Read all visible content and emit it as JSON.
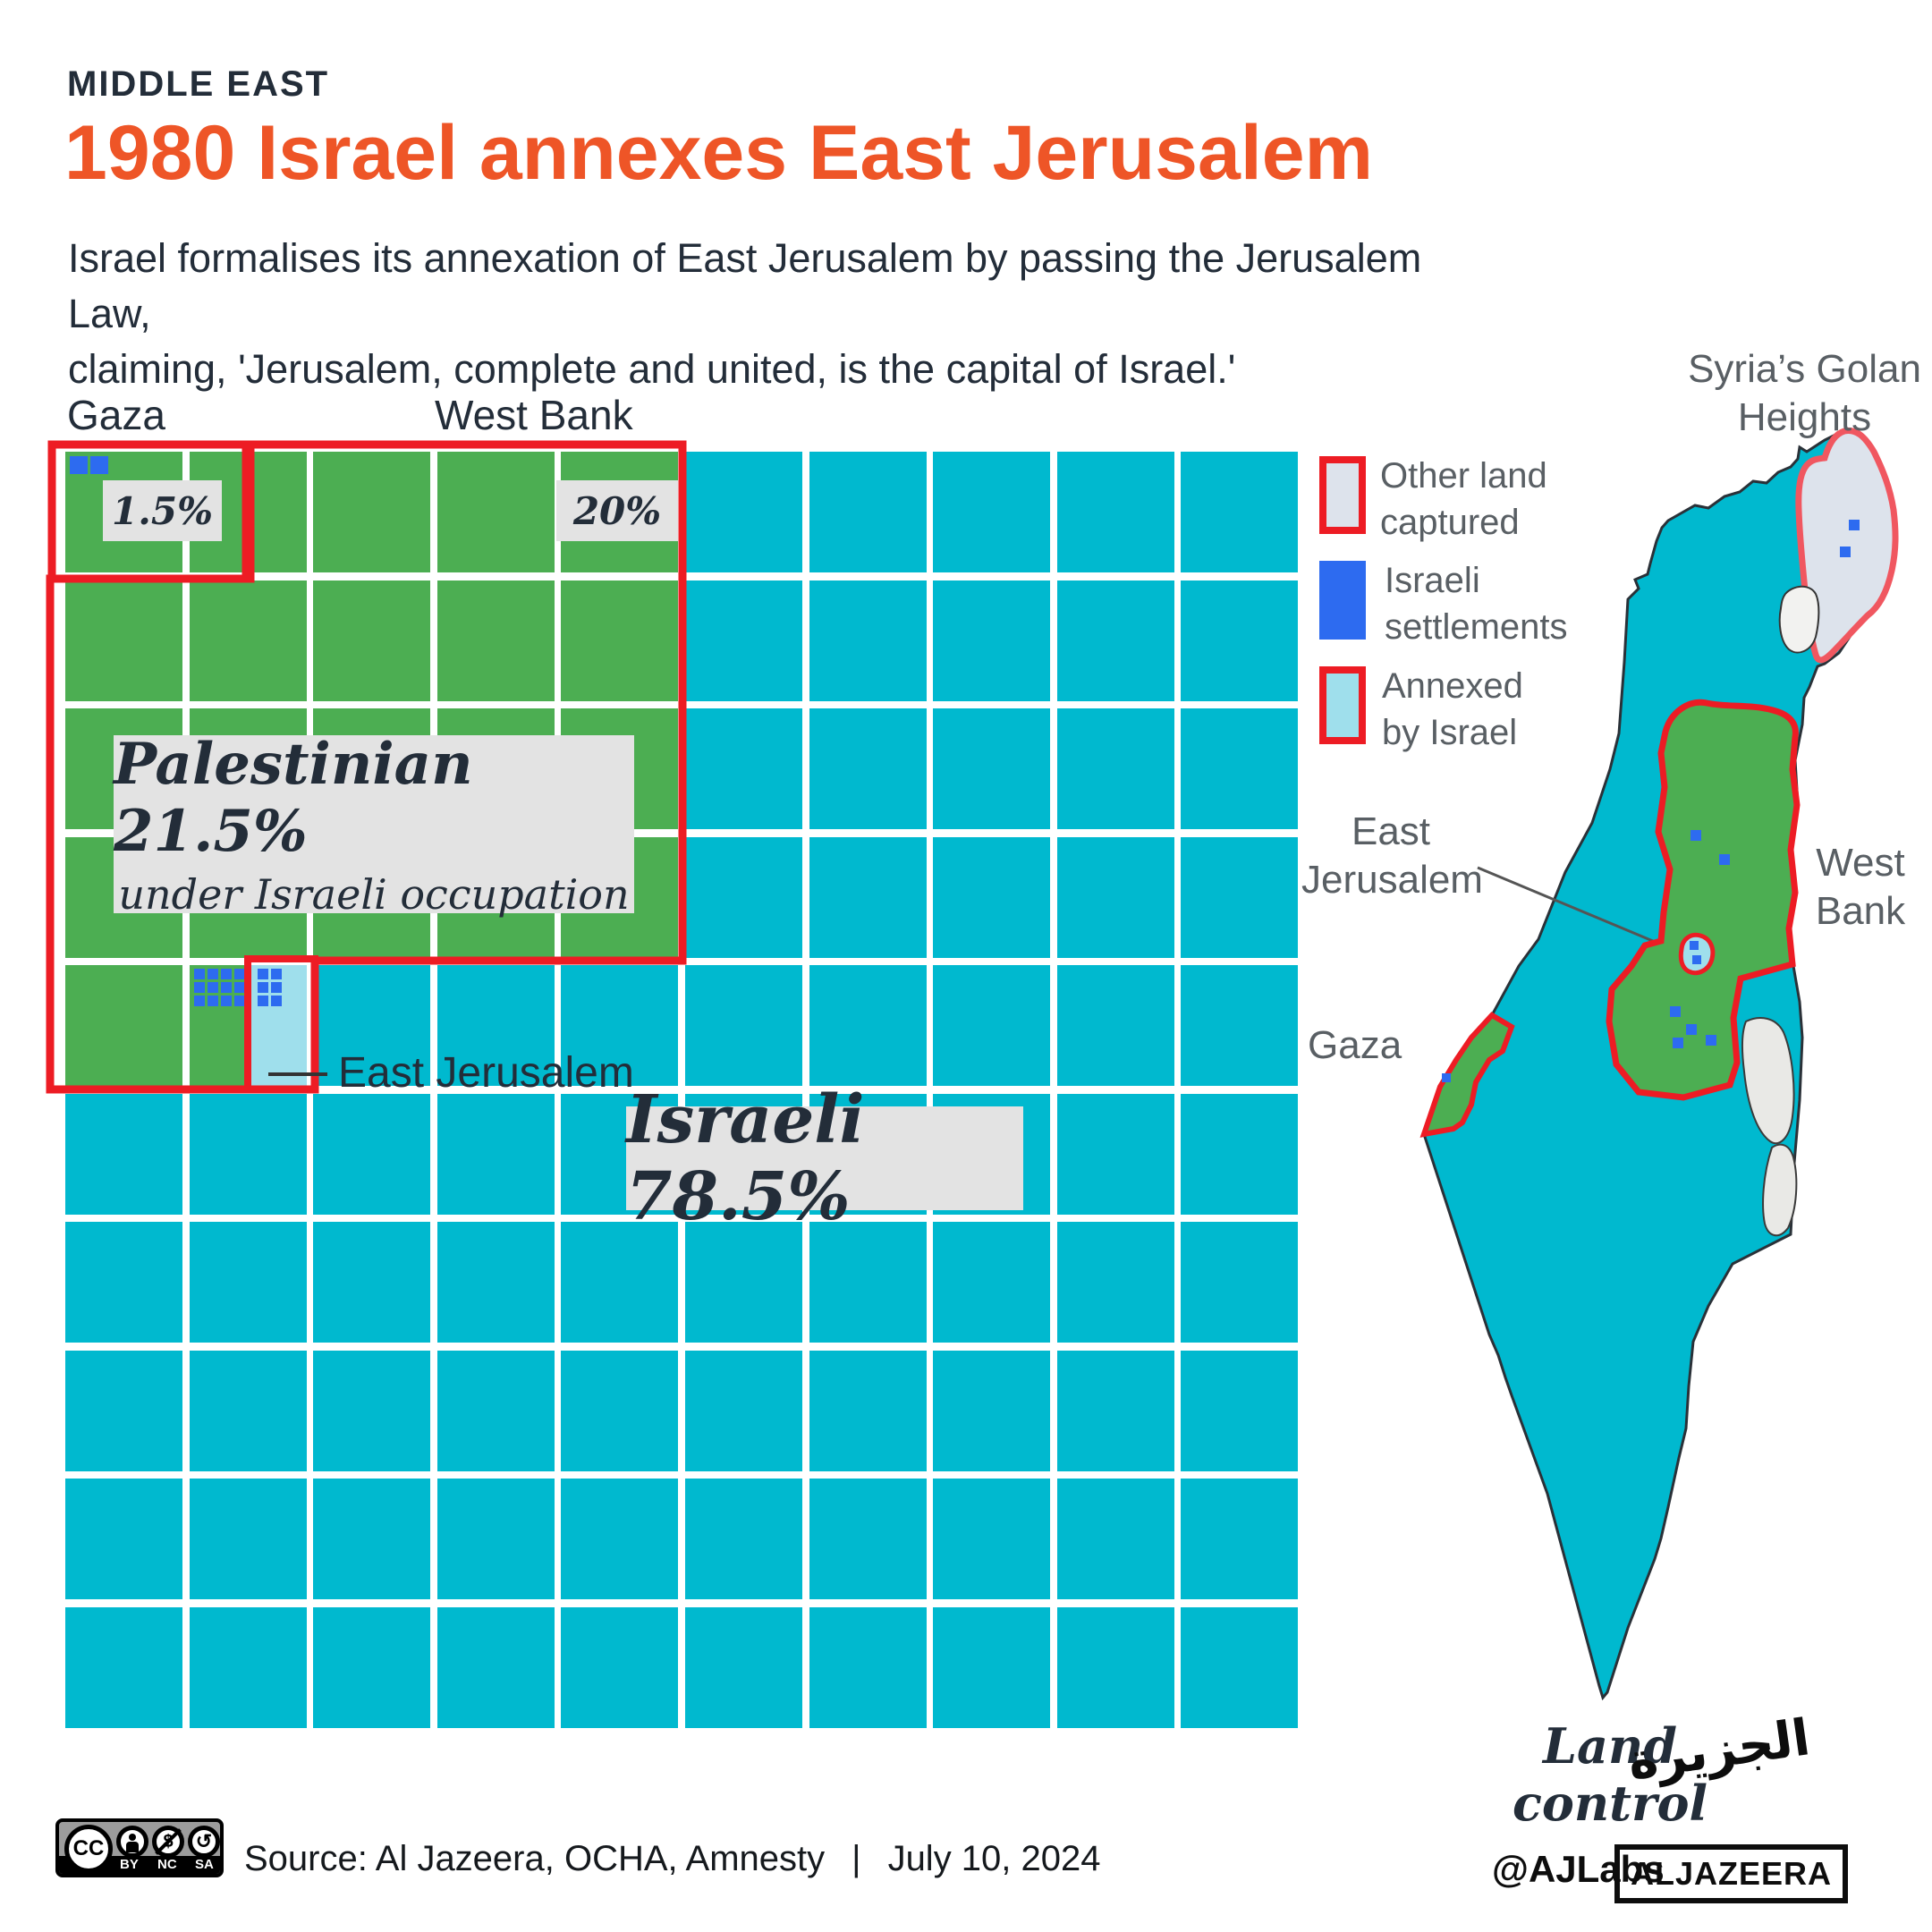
{
  "colors": {
    "orange": "#ee5527",
    "navy": "#232d39",
    "green": "#4cae52",
    "cyan": "#00b9cf",
    "light_cyan": "#9fdfec",
    "settlement_blue": "#2d6bf0",
    "red": "#ed1c24",
    "golan_red": "#f05760",
    "golan_fill": "#dde3ec",
    "dead_sea_fill": "#e9e9e6",
    "label_bg": "#e3e3e3",
    "legend_text_gray": "#595f64",
    "footer_black": "#15191d"
  },
  "header": {
    "kicker": "MIDDLE EAST",
    "year": "1980",
    "title": " Israel annexes East Jerusalem",
    "subtitle": "Israel formalises its annexation of East Jerusalem by passing the Jerusalem Law,\nclaiming, 'Jerusalem, complete and united, is the capital of Israel.'"
  },
  "chart": {
    "labels": {
      "gaza": "Gaza",
      "west_bank": "West Bank",
      "pct_gaza": "1.5%",
      "pct_west_bank": "20%",
      "palestinian_line1": "Palestinian 21.5%",
      "palestinian_line2": "under Israeli occupation",
      "east_jerusalem": "East Jerusalem",
      "israeli": "Israeli 78.5%"
    }
  },
  "chart_data": {
    "type": "waffle",
    "title": "Land control, 1980 — Israel annexes East Jerusalem",
    "grid": {
      "rows": 10,
      "cols": 10,
      "square_unit_percent": 1
    },
    "groups": [
      {
        "name": "Gaza",
        "percent": 1.5,
        "color": "green"
      },
      {
        "name": "West Bank",
        "percent": 20,
        "color": "green"
      },
      {
        "name": "Palestinian under Israeli occupation (total)",
        "percent": 21.5,
        "color": "green"
      },
      {
        "name": "East Jerusalem (annexed by Israel)",
        "percent": 0.5,
        "color": "light_cyan"
      },
      {
        "name": "Israeli",
        "percent": 78.5,
        "color": "cyan"
      }
    ],
    "layout": {
      "green_rows": 4,
      "green_cols": 5,
      "row5_green_full_cells": 1,
      "row5_green_half_cell": true,
      "row5_annexed_half_cell": true
    },
    "settlement_squares": {
      "gaza": 2,
      "west_bank_row5": 12,
      "east_jerusalem_row5": 6
    }
  },
  "legend": {
    "other_land": "Other land\ncaptured",
    "settlements": "Israeli\nsettlements",
    "annexed": "Annexed\nby Israel"
  },
  "map": {
    "golan": "Syria’s Golan\nHeights",
    "east_jerusalem": "East\nJerusalem",
    "west_bank": "West\nBank",
    "gaza": "Gaza",
    "caption": "Land control"
  },
  "footer": {
    "source": "Source: Al Jazeera, OCHA, Amnesty",
    "separator": "|",
    "date": "July 10, 2024",
    "credit": "@AJLabs",
    "logo_text": "ALJAZEERA",
    "logo_arabic": "الجزيرة",
    "cc": {
      "cc": "CC",
      "by": "BY",
      "nc": "NC",
      "sa": "SA"
    }
  }
}
